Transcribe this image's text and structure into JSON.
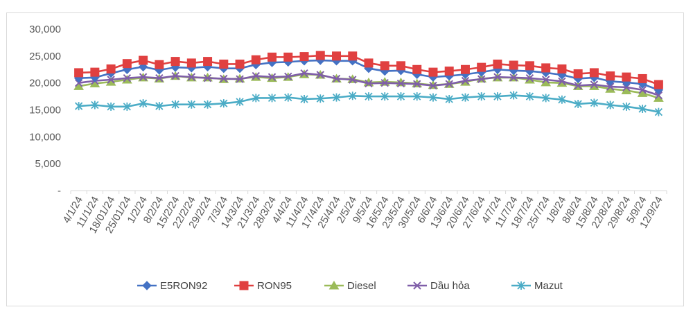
{
  "chart_data": {
    "type": "line",
    "title": "",
    "xlabel": "",
    "ylabel": "",
    "ylim": [
      0,
      30000
    ],
    "y_ticks": [
      {
        "value": 0,
        "label": "-"
      },
      {
        "value": 5000,
        "label": "5,000"
      },
      {
        "value": 10000,
        "label": "10,000"
      },
      {
        "value": 15000,
        "label": "15,000"
      },
      {
        "value": 20000,
        "label": "20,000"
      },
      {
        "value": 25000,
        "label": "25,000"
      },
      {
        "value": 30000,
        "label": "30,000"
      }
    ],
    "grid": false,
    "legend_position": "bottom",
    "categories": [
      "4/1/24",
      "11/1/24",
      "18/01/24",
      "25/01/24",
      "1/2/24",
      "8/2/24",
      "15/2/24",
      "22/2/24",
      "29/2/24",
      "7/3/24",
      "14/3/24",
      "21/3/24",
      "28/3/24",
      "4/4/24",
      "11/4/24",
      "17/4/24",
      "25/4/24",
      "2/5/24",
      "9/5/24",
      "16/5/24",
      "23/5/24",
      "30/5/24",
      "6/6/24",
      "13/6/24",
      "20/6/24",
      "27/6/24",
      "4/7/24",
      "11/7/24",
      "18/7/24",
      "25/7/24",
      "1/8/24",
      "8/8/24",
      "15/8/24",
      "22/8/24",
      "29/8/24",
      "5/9/24",
      "12/9/24"
    ],
    "series": [
      {
        "name": "E5RON92",
        "color": "#4472c4",
        "marker": "diamond",
        "values": [
          20900,
          21000,
          21800,
          22500,
          23000,
          22400,
          22900,
          22800,
          23000,
          22700,
          22700,
          23400,
          23800,
          23900,
          24100,
          24200,
          24100,
          24100,
          22700,
          22200,
          22300,
          21600,
          21100,
          21300,
          21600,
          22000,
          22500,
          22300,
          22200,
          21900,
          21500,
          20800,
          21000,
          20300,
          20100,
          19800,
          18700
        ]
      },
      {
        "name": "RON95",
        "color": "#e04040",
        "marker": "square",
        "values": [
          21900,
          22000,
          22600,
          23600,
          24200,
          23400,
          24000,
          23700,
          24000,
          23500,
          23500,
          24300,
          24800,
          24800,
          24900,
          25100,
          25000,
          25000,
          23700,
          23200,
          23200,
          22500,
          22000,
          22200,
          22500,
          22900,
          23500,
          23300,
          23200,
          22800,
          22600,
          21700,
          21900,
          21300,
          21100,
          20800,
          19700
        ]
      },
      {
        "name": "Diesel",
        "color": "#9bbb59",
        "marker": "triangle",
        "values": [
          19400,
          19900,
          20200,
          20600,
          21000,
          20800,
          21300,
          21000,
          21000,
          20700,
          20800,
          21100,
          20900,
          21100,
          21600,
          21500,
          20800,
          20700,
          20100,
          20200,
          20100,
          19900,
          19600,
          19800,
          20200,
          20800,
          21000,
          21000,
          20600,
          20100,
          20000,
          19400,
          19400,
          18900,
          18600,
          18100,
          17200
        ]
      },
      {
        "name": "Dầu hỏa",
        "color": "#7f5ea8",
        "marker": "x",
        "values": [
          20000,
          20400,
          20600,
          20900,
          21100,
          20900,
          21300,
          21100,
          20900,
          20800,
          20700,
          21300,
          21100,
          21200,
          21800,
          21500,
          20800,
          20600,
          19900,
          20000,
          19900,
          19800,
          19500,
          19800,
          20400,
          20700,
          21100,
          21000,
          20900,
          20600,
          20300,
          19500,
          19700,
          19300,
          19200,
          18700,
          17700
        ]
      },
      {
        "name": "Mazut",
        "color": "#4bacc6",
        "marker": "asterisk",
        "values": [
          15700,
          15900,
          15600,
          15600,
          16200,
          15700,
          16000,
          16000,
          16000,
          16200,
          16500,
          17200,
          17200,
          17300,
          17000,
          17100,
          17300,
          17600,
          17500,
          17500,
          17500,
          17500,
          17300,
          17000,
          17300,
          17500,
          17500,
          17700,
          17500,
          17200,
          16900,
          16100,
          16300,
          15900,
          15600,
          15200,
          14600
        ]
      }
    ]
  }
}
